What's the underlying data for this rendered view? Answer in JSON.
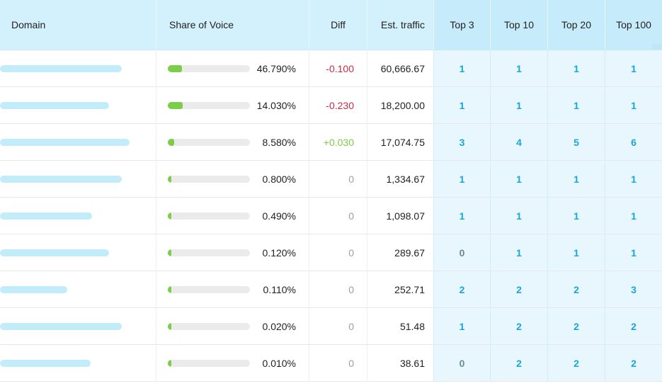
{
  "header": {
    "domain": "Domain",
    "share_of_voice": "Share of Voice",
    "diff": "Diff",
    "est_traffic": "Est. traffic",
    "top3": "Top 3",
    "top10": "Top 10",
    "top20": "Top 20",
    "top100": "Top 100"
  },
  "rows": [
    {
      "domain_bar": 0.78,
      "sov_fill": 0.17,
      "sov": "46.790%",
      "diff": "-0.100",
      "diff_kind": "neg",
      "traffic": "60,666.67",
      "top3": "1",
      "top10": "1",
      "top20": "1",
      "top100": "1"
    },
    {
      "domain_bar": 0.7,
      "sov_fill": 0.18,
      "sov": "14.030%",
      "diff": "-0.230",
      "diff_kind": "neg",
      "traffic": "18,200.00",
      "top3": "1",
      "top10": "1",
      "top20": "1",
      "top100": "1"
    },
    {
      "domain_bar": 0.83,
      "sov_fill": 0.08,
      "sov": "8.580%",
      "diff": "+0.030",
      "diff_kind": "pos",
      "traffic": "17,074.75",
      "top3": "3",
      "top10": "4",
      "top20": "5",
      "top100": "6"
    },
    {
      "domain_bar": 0.78,
      "sov_fill": 0.04,
      "sov": "0.800%",
      "diff": "0",
      "diff_kind": "zero",
      "traffic": "1,334.67",
      "top3": "1",
      "top10": "1",
      "top20": "1",
      "top100": "1"
    },
    {
      "domain_bar": 0.59,
      "sov_fill": 0.04,
      "sov": "0.490%",
      "diff": "0",
      "diff_kind": "zero",
      "traffic": "1,098.07",
      "top3": "1",
      "top10": "1",
      "top20": "1",
      "top100": "1"
    },
    {
      "domain_bar": 0.7,
      "sov_fill": 0.04,
      "sov": "0.120%",
      "diff": "0",
      "diff_kind": "zero",
      "traffic": "289.67",
      "top3": "0",
      "top10": "1",
      "top20": "1",
      "top100": "1"
    },
    {
      "domain_bar": 0.43,
      "sov_fill": 0.04,
      "sov": "0.110%",
      "diff": "0",
      "diff_kind": "zero",
      "traffic": "252.71",
      "top3": "2",
      "top10": "2",
      "top20": "2",
      "top100": "3"
    },
    {
      "domain_bar": 0.78,
      "sov_fill": 0.04,
      "sov": "0.020%",
      "diff": "0",
      "diff_kind": "zero",
      "traffic": "51.48",
      "top3": "1",
      "top10": "2",
      "top20": "2",
      "top100": "2"
    },
    {
      "domain_bar": 0.58,
      "sov_fill": 0.04,
      "sov": "0.010%",
      "diff": "0",
      "diff_kind": "zero",
      "traffic": "38.61",
      "top3": "0",
      "top10": "2",
      "top20": "2",
      "top100": "2"
    }
  ],
  "colors": {
    "header_bg": "#d3f1fd",
    "domain_bar": "#c3ecfb",
    "sov_fill": "#7ccd48",
    "negative": "#cc2a45",
    "positive": "#7ccd48",
    "rank": "#1aa6d6"
  }
}
